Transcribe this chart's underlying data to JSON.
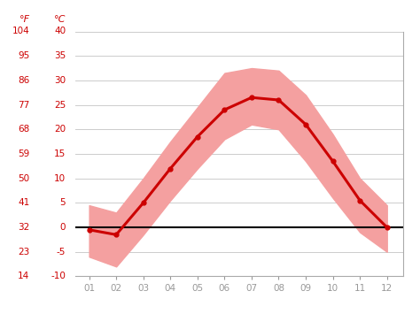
{
  "months": [
    1,
    2,
    3,
    4,
    5,
    6,
    7,
    8,
    9,
    10,
    11,
    12
  ],
  "month_labels": [
    "01",
    "02",
    "03",
    "04",
    "05",
    "06",
    "07",
    "08",
    "09",
    "10",
    "11",
    "12"
  ],
  "mean_temp_c": [
    -0.5,
    -1.5,
    5.0,
    12.0,
    18.5,
    24.0,
    26.5,
    26.0,
    21.0,
    13.5,
    5.5,
    0.0
  ],
  "high_temp_c": [
    4.5,
    3.0,
    10.0,
    17.5,
    24.5,
    31.5,
    32.5,
    32.0,
    27.0,
    19.0,
    10.0,
    4.5
  ],
  "low_temp_c": [
    -6.0,
    -8.0,
    -1.5,
    5.5,
    12.0,
    18.0,
    21.0,
    20.0,
    13.5,
    6.0,
    -1.0,
    -5.0
  ],
  "ylim_c": [
    -10,
    40
  ],
  "yticks_c": [
    -10,
    -5,
    0,
    5,
    10,
    15,
    20,
    25,
    30,
    35,
    40
  ],
  "yticks_f": [
    14,
    23,
    32,
    41,
    50,
    59,
    68,
    77,
    86,
    95,
    104
  ],
  "mean_line_color": "#cc0000",
  "band_color": "#f4a0a0",
  "zero_line_color": "#000000",
  "grid_color": "#cccccc",
  "label_color": "#cc0000",
  "tick_color": "#999999",
  "marker": "o",
  "marker_size": 3.5,
  "line_width": 2.2,
  "background_color": "#ffffff",
  "label_f": "°F",
  "label_c": "°C"
}
